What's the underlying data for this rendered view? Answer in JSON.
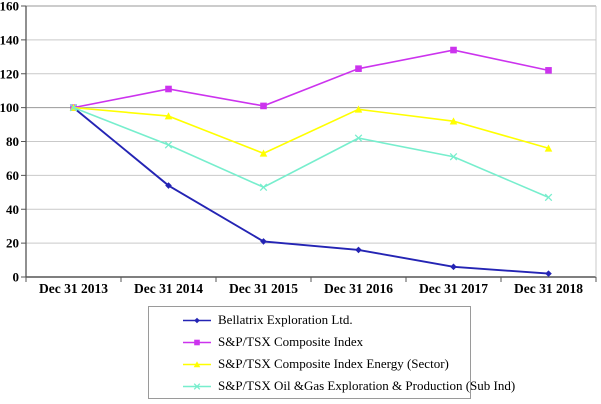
{
  "chart_data": {
    "type": "line",
    "title": "",
    "xlabel": "",
    "ylabel": "",
    "ylim": [
      0,
      160
    ],
    "y_ticks": [
      0,
      20,
      40,
      60,
      80,
      100,
      120,
      140,
      160
    ],
    "grid": "horizontal",
    "legend_position": "bottom",
    "categories": [
      "Dec 31 2013",
      "Dec 31 2014",
      "Dec 31 2015",
      "Dec 31 2016",
      "Dec 31 2017",
      "Dec 31 2018"
    ],
    "series": [
      {
        "name": "Bellatrix Exploration Ltd.",
        "color": "#2424b4",
        "marker": "diamond",
        "values": [
          100,
          54,
          21,
          16,
          6,
          2
        ]
      },
      {
        "name": "S&P/TSX Composite Index",
        "color": "#cc33ee",
        "marker": "square",
        "values": [
          100,
          111,
          101,
          123,
          134,
          122
        ]
      },
      {
        "name": "S&P/TSX Composite Index Energy (Sector)",
        "color": "#ffff00",
        "marker": "triangle",
        "values": [
          100,
          95,
          73,
          99,
          92,
          76
        ]
      },
      {
        "name": "S&P/TSX Oil &Gas Exploration & Production (Sub Ind)",
        "color": "#77eecd",
        "marker": "x",
        "values": [
          100,
          78,
          53,
          82,
          71,
          47
        ]
      }
    ],
    "colors": {
      "axis": "#555555",
      "major_gridline": "#999999",
      "minor_gridline": "#c9c9c9",
      "tick_label": "#000000"
    }
  }
}
